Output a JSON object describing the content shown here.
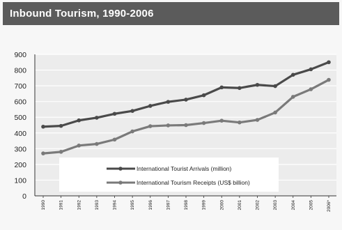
{
  "chart_data": {
    "type": "line",
    "title": "Inbound Tourism, 1990-2006",
    "x": [
      "1990",
      "1991",
      "1992",
      "1993",
      "1994",
      "1995",
      "1996",
      "1997",
      "1998",
      "1999",
      "2000",
      "2001",
      "2002",
      "2003",
      "2004",
      "2005",
      "2006*"
    ],
    "ylim": [
      0,
      900
    ],
    "yticks": [
      0,
      100,
      200,
      300,
      400,
      500,
      600,
      700,
      800,
      900
    ],
    "grid": true,
    "legend_position": "bottom-center",
    "series": [
      {
        "name": "International Tourist Arrivals (million)",
        "color": "#4a4a4a",
        "values": [
          440,
          445,
          480,
          497,
          522,
          540,
          572,
          598,
          612,
          640,
          690,
          686,
          706,
          698,
          770,
          805,
          850
        ]
      },
      {
        "name": "International Tourism Receipts (US$ billion)",
        "color": "#7a7a7a",
        "values": [
          270,
          280,
          320,
          330,
          358,
          410,
          443,
          448,
          450,
          463,
          478,
          467,
          483,
          530,
          630,
          678,
          738
        ]
      }
    ]
  }
}
